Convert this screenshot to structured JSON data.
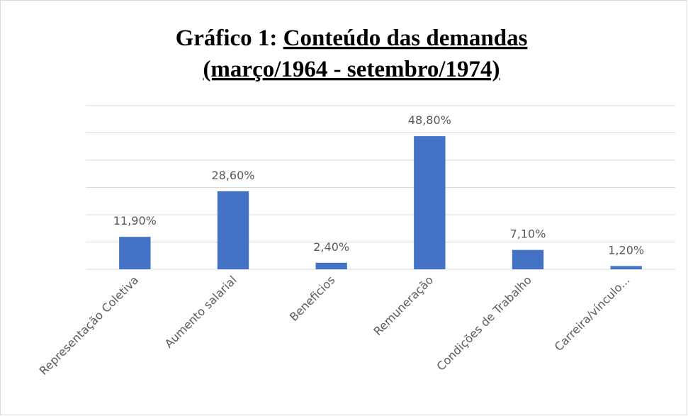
{
  "chart_data": {
    "type": "bar",
    "title": [
      "Gráfico 1:",
      "Conteúdo das demandas",
      "(março/1964 - setembro/1974)"
    ],
    "categories": [
      "Representação Coletiva",
      "Aumento salarial",
      "Beneficios",
      "Remuneração",
      "Condições de Trabalho",
      "Carreira/vínculo..."
    ],
    "values": [
      11.9,
      28.6,
      2.4,
      48.8,
      7.1,
      1.2
    ],
    "value_labels": [
      "11,90%",
      "28,60%",
      "2,40%",
      "48,80%",
      "7,10%",
      "1,20%"
    ],
    "color": "#4472c4",
    "ylim": [
      0,
      60
    ],
    "yticks": [
      0,
      10,
      20,
      30,
      40,
      50,
      60
    ],
    "grid": true
  }
}
